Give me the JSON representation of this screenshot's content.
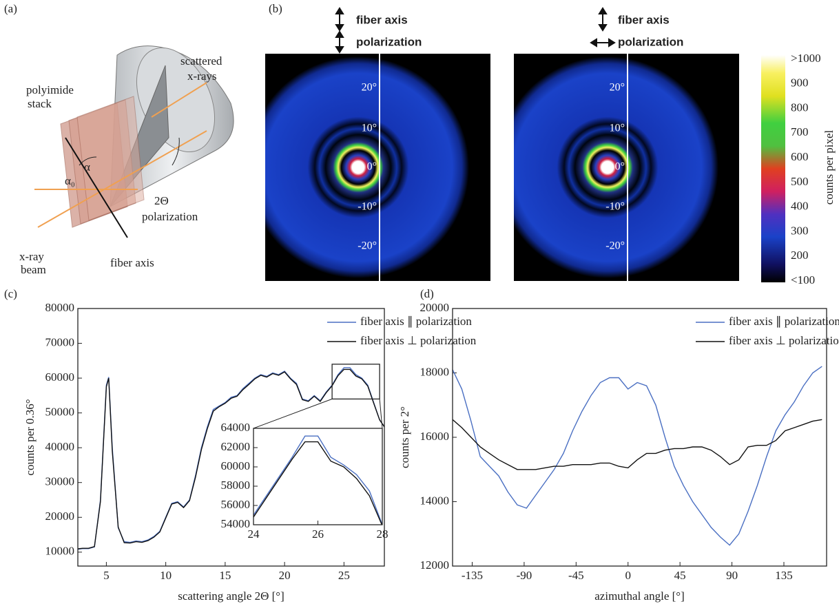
{
  "figure": {
    "panel_labels": [
      "(a)",
      "(b)",
      "(c)",
      "(d)"
    ],
    "diagram": {
      "labels": [
        "scattered",
        "x-rays",
        "polyimide",
        "stack",
        "α",
        "α₀",
        "2Θ",
        "polarization",
        "x-ray",
        "beam",
        "fiber axis"
      ]
    },
    "images": {
      "headers": [
        [
          "fiber axis",
          "polarization"
        ],
        [
          "fiber axis",
          "polarization"
        ]
      ],
      "angle_labels": [
        "20°",
        "10°",
        "0°",
        "-10°",
        "-20°"
      ]
    },
    "colorbar": {
      "labels": [
        ">1000",
        "900",
        "800",
        "700",
        "600",
        "500",
        "400",
        "300",
        "200",
        "<100"
      ],
      "title": "counts per pixel"
    }
  },
  "chart_data": [
    {
      "type": "line",
      "xlabel": "scattering angle 2Θ [°]",
      "ylabel": "counts per 0.36°",
      "x": [
        2.5,
        3,
        3.5,
        4,
        4.5,
        5,
        5.2,
        5.5,
        6,
        6.5,
        7,
        7.5,
        8,
        8.5,
        9,
        9.5,
        10,
        10.5,
        11,
        11.5,
        12,
        12.5,
        13,
        13.5,
        14,
        14.5,
        15,
        15.5,
        16,
        16.5,
        17,
        17.5,
        18,
        18.5,
        19,
        19.5,
        20,
        20.5,
        21,
        21.5,
        22,
        22.5,
        23,
        23.5,
        24,
        24.5,
        25,
        25.5,
        26,
        26.5,
        27,
        27.5,
        28,
        28.4
      ],
      "series": [
        {
          "name": "fiber axis ∥ polarization",
          "color": "#4a6fc2",
          "values": [
            10800,
            11000,
            11000,
            11500,
            25000,
            58000,
            60300,
            40000,
            17000,
            13000,
            12800,
            13200,
            13000,
            13500,
            14500,
            16000,
            20000,
            24000,
            24500,
            23000,
            25000,
            32000,
            40000,
            46000,
            51000,
            52000,
            53000,
            54500,
            55000,
            57000,
            58500,
            60000,
            61000,
            60500,
            61500,
            61000,
            62000,
            60000,
            58500,
            54000,
            53500,
            55000,
            53500,
            56000,
            58000,
            61000,
            63000,
            63000,
            61000,
            60000,
            58000,
            53000,
            48000,
            46000
          ]
        },
        {
          "name": "fiber axis ⊥ polarization",
          "color": "#111111",
          "values": [
            10900,
            11100,
            11100,
            11600,
            24500,
            57500,
            60000,
            39000,
            17200,
            12700,
            12600,
            13000,
            12800,
            13300,
            14300,
            15800,
            19800,
            23800,
            24300,
            22800,
            24800,
            31500,
            39500,
            45500,
            50500,
            51800,
            52800,
            54200,
            54800,
            56700,
            58200,
            59800,
            60800,
            60300,
            61300,
            60800,
            61800,
            59800,
            58200,
            53800,
            53300,
            54800,
            53300,
            55800,
            57800,
            60700,
            62500,
            62500,
            60600,
            59800,
            57700,
            52800,
            48000,
            46000
          ]
        }
      ],
      "xlim": [
        2.6,
        28.4
      ],
      "ylim": [
        6000,
        80000
      ],
      "xticks": [
        5,
        10,
        15,
        20,
        25
      ],
      "yticks": [
        10000,
        20000,
        30000,
        40000,
        50000,
        60000,
        70000,
        80000
      ]
    },
    {
      "type": "line",
      "x": [
        24,
        24.4,
        24.8,
        25.2,
        25.6,
        26,
        26.4,
        26.8,
        27.2,
        27.6,
        28
      ],
      "series": [
        {
          "color": "#4a6fc2",
          "values": [
            55000,
            57000,
            59000,
            61000,
            63200,
            63200,
            61000,
            60200,
            59200,
            57500,
            54000
          ]
        },
        {
          "color": "#111111",
          "values": [
            54800,
            56800,
            58800,
            60800,
            62600,
            62600,
            60600,
            60000,
            58800,
            57000,
            53900
          ]
        }
      ],
      "xlim": [
        24,
        28
      ],
      "ylim": [
        54000,
        64000
      ],
      "xticks": [
        24,
        26,
        28
      ],
      "yticks": [
        54000,
        56000,
        58000,
        60000,
        62000,
        64000
      ]
    },
    {
      "type": "line",
      "xlabel": "azimuthal angle [°]",
      "ylabel": "counts per 2°",
      "x": [
        -152,
        -144,
        -136,
        -128,
        -120,
        -112,
        -104,
        -96,
        -88,
        -80,
        -72,
        -64,
        -56,
        -48,
        -40,
        -32,
        -24,
        -16,
        -8,
        0,
        8,
        16,
        24,
        32,
        40,
        48,
        56,
        64,
        72,
        80,
        88,
        96,
        104,
        112,
        120,
        128,
        136,
        144,
        152,
        160,
        168
      ],
      "series": [
        {
          "name": "fiber axis ∥ polarization",
          "color": "#4a6fc2",
          "values": [
            18100,
            17500,
            16500,
            15400,
            15100,
            14800,
            14300,
            13900,
            13800,
            14200,
            14600,
            15000,
            15500,
            16200,
            16800,
            17300,
            17700,
            17850,
            17850,
            17500,
            17700,
            17600,
            17000,
            16000,
            15100,
            14500,
            14000,
            13600,
            13200,
            12900,
            12650,
            13000,
            13700,
            14500,
            15400,
            16200,
            16700,
            17100,
            17600,
            18000,
            18200
          ]
        },
        {
          "name": "fiber axis ⊥ polarization",
          "color": "#111111",
          "values": [
            16550,
            16300,
            16000,
            15700,
            15500,
            15300,
            15150,
            15000,
            15000,
            15000,
            15050,
            15100,
            15100,
            15150,
            15150,
            15150,
            15200,
            15200,
            15100,
            15050,
            15300,
            15500,
            15500,
            15600,
            15650,
            15650,
            15700,
            15700,
            15600,
            15400,
            15150,
            15300,
            15700,
            15750,
            15750,
            15900,
            16200,
            16300,
            16400,
            16500,
            16550
          ]
        }
      ],
      "xlim": [
        -152,
        172
      ],
      "ylim": [
        12000,
        20000
      ],
      "xticks": [
        -135,
        -90,
        -45,
        0,
        45,
        90,
        135
      ],
      "yticks": [
        12000,
        14000,
        16000,
        18000,
        20000
      ]
    }
  ]
}
